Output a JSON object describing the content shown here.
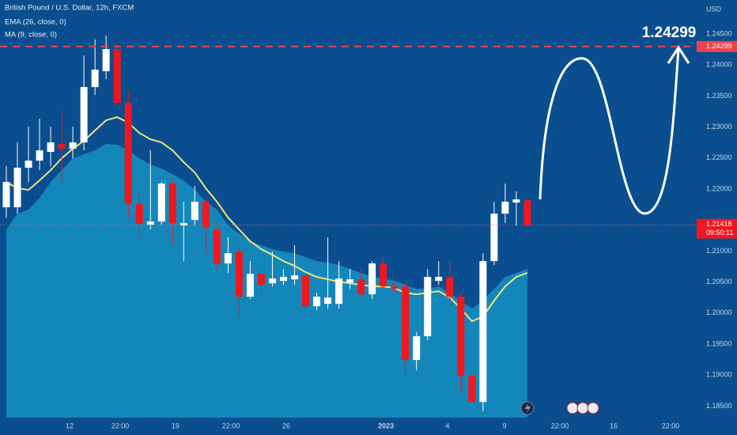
{
  "chart_data": {
    "type": "candlestick",
    "title": "British Pound / U.S. Dollar, 12h, FXCM",
    "currency": "USD",
    "categories": [
      null,
      null,
      null,
      null,
      null,
      null,
      null,
      null,
      null,
      null,
      null,
      null,
      null,
      null,
      null,
      null,
      null,
      null,
      null,
      null,
      null,
      null,
      null,
      null,
      null,
      null,
      null,
      null,
      null,
      null,
      null,
      null,
      null,
      null,
      null,
      null,
      null,
      null,
      null,
      null,
      null,
      null,
      null,
      null,
      null,
      null,
      null,
      null
    ],
    "open": [
      1.21706,
      1.21706,
      1.22344,
      1.22458,
      1.22599,
      1.22726,
      1.2265,
      1.22752,
      1.23645,
      1.239,
      1.24258,
      1.2339,
      1.21757,
      1.21425,
      1.21476,
      1.22088,
      1.21412,
      1.21501,
      1.21795,
      1.21348,
      1.208,
      1.20991,
      1.20264,
      1.20634,
      1.20481,
      1.20519,
      1.20544,
      1.20608,
      1.2011,
      1.20149,
      1.20149,
      1.20493,
      1.20544,
      1.20302,
      1.208,
      1.2043,
      1.2043,
      1.19243,
      1.19626,
      1.20519,
      1.20583,
      1.20264,
      1.18988,
      1.18566,
      1.20838,
      1.21603,
      1.21782,
      1.2182
    ],
    "high": [
      1.22369,
      1.22752,
      1.23007,
      1.23135,
      1.23007,
      1.23262,
      1.23007,
      1.24155,
      1.24411,
      1.24474,
      1.24347,
      1.23581,
      1.21986,
      1.22624,
      1.22114,
      1.22178,
      1.21795,
      1.2205,
      1.21859,
      1.21476,
      1.21221,
      1.21093,
      1.20838,
      1.2071,
      1.20991,
      1.2071,
      1.21093,
      1.20647,
      1.20327,
      1.21221,
      1.20838,
      1.2071,
      1.2071,
      1.20838,
      1.20902,
      1.20519,
      1.20519,
      1.1969,
      1.2071,
      1.20838,
      1.20838,
      1.20327,
      1.19052,
      1.20965,
      1.21795,
      1.22088,
      1.21961,
      1.21833
    ],
    "low": [
      1.2154,
      1.21603,
      1.22114,
      1.22305,
      1.22369,
      1.22114,
      1.22497,
      1.22624,
      1.23517,
      1.23773,
      1.23326,
      1.2154,
      1.21221,
      1.21348,
      1.21412,
      1.21093,
      1.20838,
      1.21412,
      1.20965,
      1.2071,
      1.20647,
      1.19945,
      1.20225,
      1.20327,
      1.2043,
      1.20455,
      1.20455,
      1.20047,
      1.20047,
      1.20072,
      1.20072,
      1.20391,
      1.20264,
      1.20225,
      1.20391,
      1.20327,
      1.18988,
      1.19077,
      1.19562,
      1.20455,
      1.202,
      1.18732,
      1.18541,
      1.18414,
      1.20774,
      1.2145,
      1.21412,
      1.21374
    ],
    "close": [
      1.22114,
      1.22344,
      1.22458,
      1.22624,
      1.22752,
      1.2265,
      1.22752,
      1.23645,
      1.23926,
      1.24258,
      1.2339,
      1.21757,
      1.21438,
      1.21476,
      1.22088,
      1.2145,
      1.2145,
      1.21795,
      1.21387,
      1.208,
      1.20965,
      1.20264,
      1.20634,
      1.20455,
      1.20557,
      1.20583,
      1.20608,
      1.2011,
      1.20264,
      1.20251,
      1.20557,
      1.20544,
      1.20302,
      1.208,
      1.2043,
      1.20391,
      1.19243,
      1.19626,
      1.20583,
      1.20583,
      1.20264,
      1.18988,
      1.18566,
      1.20838,
      1.21603,
      1.21795,
      1.21833,
      1.21418
    ],
    "up_color": "#ffffff",
    "down_color": "#f2161f",
    "series": [
      {
        "name": "EMA (26, close, 0)",
        "color": "#efe37a",
        "kind": "line",
        "values": [
          1.22114,
          1.22012,
          1.21986,
          1.22139,
          1.22305,
          1.22497,
          1.2265,
          1.22778,
          1.22944,
          1.23109,
          1.2316,
          1.23071,
          1.22905,
          1.22803,
          1.22752,
          1.22624,
          1.22433,
          1.22267,
          1.22012,
          1.21795,
          1.2154,
          1.21348,
          1.21157,
          1.21029,
          1.2094,
          1.20838,
          1.20761,
          1.20659,
          1.20583,
          1.20544,
          1.20506,
          1.20481,
          1.20455,
          1.2043,
          1.2043,
          1.20404,
          1.20327,
          1.20302,
          1.20327,
          1.20353,
          1.20251,
          1.20072,
          1.19868,
          1.19945,
          1.202,
          1.2043,
          1.20583,
          1.20647
        ]
      },
      {
        "name": "MA (9, close, 0)",
        "color": "#1487ba",
        "kind": "area",
        "values": [
          1.21348,
          1.21603,
          1.21667,
          1.21859,
          1.22114,
          1.22305,
          1.22497,
          1.2256,
          1.22624,
          1.22726,
          1.22714,
          1.22624,
          1.22497,
          1.22395,
          1.22331,
          1.22241,
          1.22139,
          1.21986,
          1.21795,
          1.21667,
          1.21412,
          1.21284,
          1.21157,
          1.21093,
          1.21029,
          1.20991,
          1.20965,
          1.20902,
          1.20838,
          1.20812,
          1.20774,
          1.2071,
          1.20647,
          1.20583,
          1.20557,
          1.20519,
          1.20455,
          1.20391,
          1.20391,
          1.2043,
          1.20327,
          1.202,
          1.20072,
          1.202,
          1.20391,
          1.20583,
          1.20647,
          1.2071
        ]
      }
    ],
    "xlim": [
      -0.57,
      62.2
    ],
    "xticks": [
      {
        "value": 5.71,
        "label": "12"
      },
      {
        "value": 10.27,
        "label": "22:00"
      },
      {
        "value": 15.26,
        "label": "19"
      },
      {
        "value": 20.26,
        "label": "22:00"
      },
      {
        "value": 25.25,
        "label": "26"
      },
      {
        "value": 34.24,
        "label": "2023"
      },
      {
        "value": 39.8,
        "label": "4"
      },
      {
        "value": 44.94,
        "label": "9"
      },
      {
        "value": 49.93,
        "label": "22:00"
      },
      {
        "value": 54.78,
        "label": "16"
      },
      {
        "value": 59.91,
        "label": "22:00"
      }
    ],
    "ylim": [
      1.18314,
      1.25049
    ],
    "yticks": [
      {
        "value": 1.245,
        "label": "1.24500"
      },
      {
        "value": 1.24,
        "label": "1.24000"
      },
      {
        "value": 1.235,
        "label": "1.23500"
      },
      {
        "value": 1.23,
        "label": "1.23000"
      },
      {
        "value": 1.225,
        "label": "1.22500"
      },
      {
        "value": 1.22,
        "label": "1.22000"
      },
      {
        "value": 1.21,
        "label": "1.21000"
      },
      {
        "value": 1.205,
        "label": "1.20500"
      },
      {
        "value": 1.2,
        "label": "1.20000"
      },
      {
        "value": 1.195,
        "label": "1.19500"
      },
      {
        "value": 1.19,
        "label": "1.19000"
      },
      {
        "value": 1.185,
        "label": "1.18500"
      }
    ],
    "grid": false,
    "target": 1.24299,
    "target_color": "#f0424c",
    "last_price": 1.21418,
    "countdown": "09:50:11"
  }
}
